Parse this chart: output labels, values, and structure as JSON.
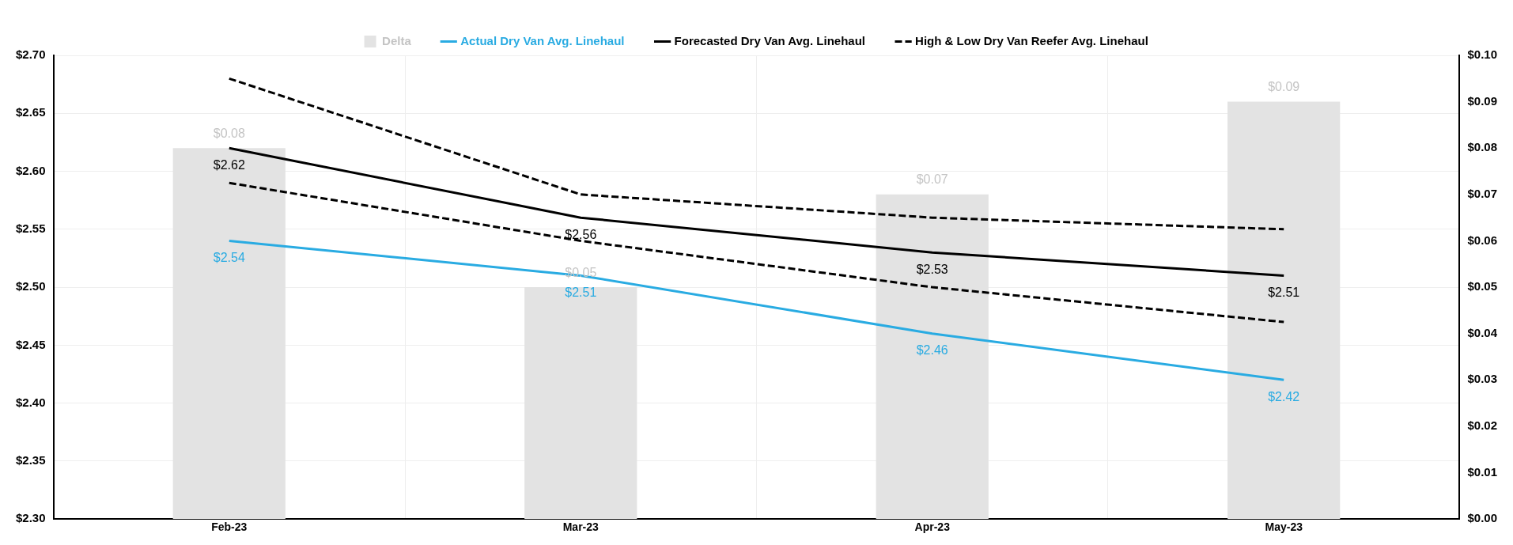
{
  "chart_data": {
    "type": "line",
    "categories": [
      "Feb-23",
      "Mar-23",
      "Apr-23",
      "May-23"
    ],
    "series": [
      {
        "name": "Delta",
        "type": "bar",
        "axis": "y2",
        "color": "#e3e3e3",
        "values": [
          0.08,
          0.05,
          0.07,
          0.09
        ],
        "value_labels": [
          "$0.08",
          "$0.05",
          "$0.07",
          "$0.09"
        ]
      },
      {
        "name": "Actual Dry Van Avg. Linehaul",
        "color": "#29abe2",
        "values": [
          2.54,
          2.51,
          2.46,
          2.42
        ],
        "value_labels": [
          "$2.54",
          "$2.51",
          "$2.46",
          "$2.42"
        ]
      },
      {
        "name": "Forecasted Dry Van Avg. Linehaul",
        "color": "#000000",
        "values": [
          2.62,
          2.56,
          2.53,
          2.51
        ],
        "value_labels": [
          "$2.62",
          "$2.56",
          "$2.53",
          "$2.51"
        ]
      },
      {
        "name": "High & Low Dry Van Reefer Avg. Linehaul",
        "color": "#000000",
        "line_style": "dashed",
        "values": [
          2.68,
          2.58,
          2.56,
          2.55
        ]
      },
      {
        "color": "#000000",
        "line_style": "dashed",
        "values": [
          2.59,
          2.54,
          2.5,
          2.47
        ]
      }
    ],
    "ylim": [
      2.3,
      2.7
    ],
    "yticks": [
      {
        "value": 2.3,
        "label": "$2.30"
      },
      {
        "value": 2.35,
        "label": "$2.35"
      },
      {
        "value": 2.4,
        "label": "$2.40"
      },
      {
        "value": 2.45,
        "label": "$2.45"
      },
      {
        "value": 2.5,
        "label": "$2.50"
      },
      {
        "value": 2.55,
        "label": "$2.55"
      },
      {
        "value": 2.6,
        "label": "$2.60"
      },
      {
        "value": 2.65,
        "label": "$2.65"
      },
      {
        "value": 2.7,
        "label": "$2.70"
      }
    ],
    "y2lim": [
      0,
      0.1
    ],
    "y2ticks": [
      {
        "value": 0,
        "label": "$0.00"
      },
      {
        "value": 0.01,
        "label": "$0.01"
      },
      {
        "value": 0.02,
        "label": "$0.02"
      },
      {
        "value": 0.03,
        "label": "$0.03"
      },
      {
        "value": 0.04,
        "label": "$0.04"
      },
      {
        "value": 0.05,
        "label": "$0.05"
      },
      {
        "value": 0.06,
        "label": "$0.06"
      },
      {
        "value": 0.07,
        "label": "$0.07"
      },
      {
        "value": 0.08,
        "label": "$0.08"
      },
      {
        "value": 0.09,
        "label": "$0.09"
      },
      {
        "value": 0.1,
        "label": "$0.10"
      }
    ],
    "grid": true,
    "legend": "top",
    "marker": "none"
  }
}
